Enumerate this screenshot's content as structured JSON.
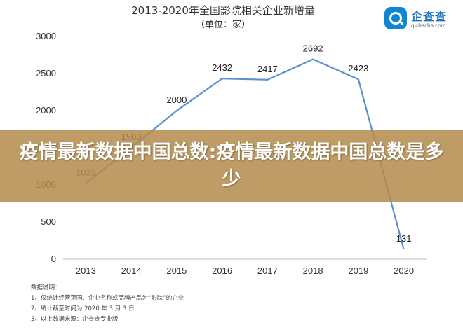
{
  "chart_data": {
    "type": "line",
    "title": "2013-2020年全国影院相关企业新增量",
    "subtitle": "（单位：家）",
    "categories": [
      "2013",
      "2014",
      "2015",
      "2016",
      "2017",
      "2018",
      "2019",
      "2020"
    ],
    "series": [
      {
        "values": [
          1023,
          1500,
          2000,
          2432,
          2417,
          2692,
          2423,
          131
        ]
      }
    ],
    "data_labels": [
      "1023",
      "1500",
      "2000",
      "2432",
      "2417",
      "2692",
      "2423",
      "131"
    ],
    "y_ticks": [
      0,
      500,
      1000,
      1500,
      2000,
      2500,
      3000
    ],
    "ylim": [
      0,
      3000
    ],
    "xlabel": "",
    "ylabel": "",
    "grid": false,
    "line_color": "#5b8fd0"
  },
  "logo": {
    "name": "企查查",
    "url": "qichacha.com"
  },
  "notes": {
    "heading": "数据说明：",
    "items": [
      "1、仅统计经营范围、企业名称或品牌产品为“影院”的企业",
      "2、统计截至时间为 2020 年 3 月 3 日",
      "3、以上数据来源：企查查专业版"
    ]
  },
  "banner": {
    "text": "疫情最新数据中国总数:疫情最新数据中国总数是多少"
  }
}
